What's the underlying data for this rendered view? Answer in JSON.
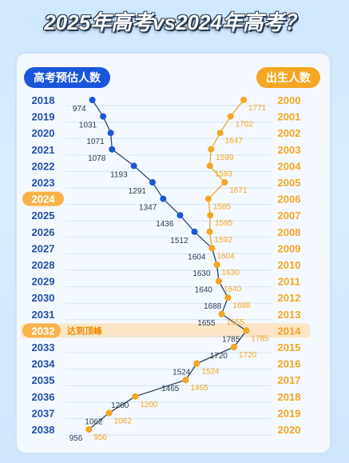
{
  "title": "2025年高考vs2024年高考？",
  "left_label": "高考预估人数",
  "right_label": "出生人数",
  "peak_label": "达到顶峰",
  "colors": {
    "blue": "#1a56db",
    "orange": "#f5a623",
    "row_label_blue": "#1f4fa8",
    "highlight": "#f9b24a"
  },
  "chart_data": {
    "type": "line",
    "highlight_rows": {
      "current": "2024",
      "peak": "2032"
    },
    "exam_years": [
      "2018",
      "2019",
      "2020",
      "2021",
      "2022",
      "2023",
      "2024",
      "2025",
      "2026",
      "2027",
      "2028",
      "2029",
      "2030",
      "2031",
      "2032",
      "2033",
      "2034",
      "2035",
      "2036",
      "2037",
      "2038"
    ],
    "birth_years": [
      "2000",
      "2001",
      "2002",
      "2003",
      "2004",
      "2005",
      "2006",
      "2007",
      "2008",
      "2009",
      "2010",
      "2011",
      "2012",
      "2013",
      "2014",
      "2015",
      "2016",
      "2017",
      "2018",
      "2019",
      "2020"
    ],
    "series": [
      {
        "name": "高考预估人数",
        "values": [
          974,
          1031,
          1071,
          1078,
          1193,
          1291,
          1347,
          1436,
          1512,
          1604,
          1630,
          1640,
          1688,
          1655,
          1785,
          1720,
          1524,
          1465,
          1200,
          1062,
          956
        ]
      },
      {
        "name": "出生人数",
        "values": [
          1771,
          1702,
          1647,
          1599,
          1593,
          1671,
          1585,
          1595,
          1592,
          1604,
          1630,
          1640,
          1688,
          1655,
          1785,
          1720,
          1524,
          1465,
          1200,
          1062,
          956
        ]
      }
    ]
  }
}
